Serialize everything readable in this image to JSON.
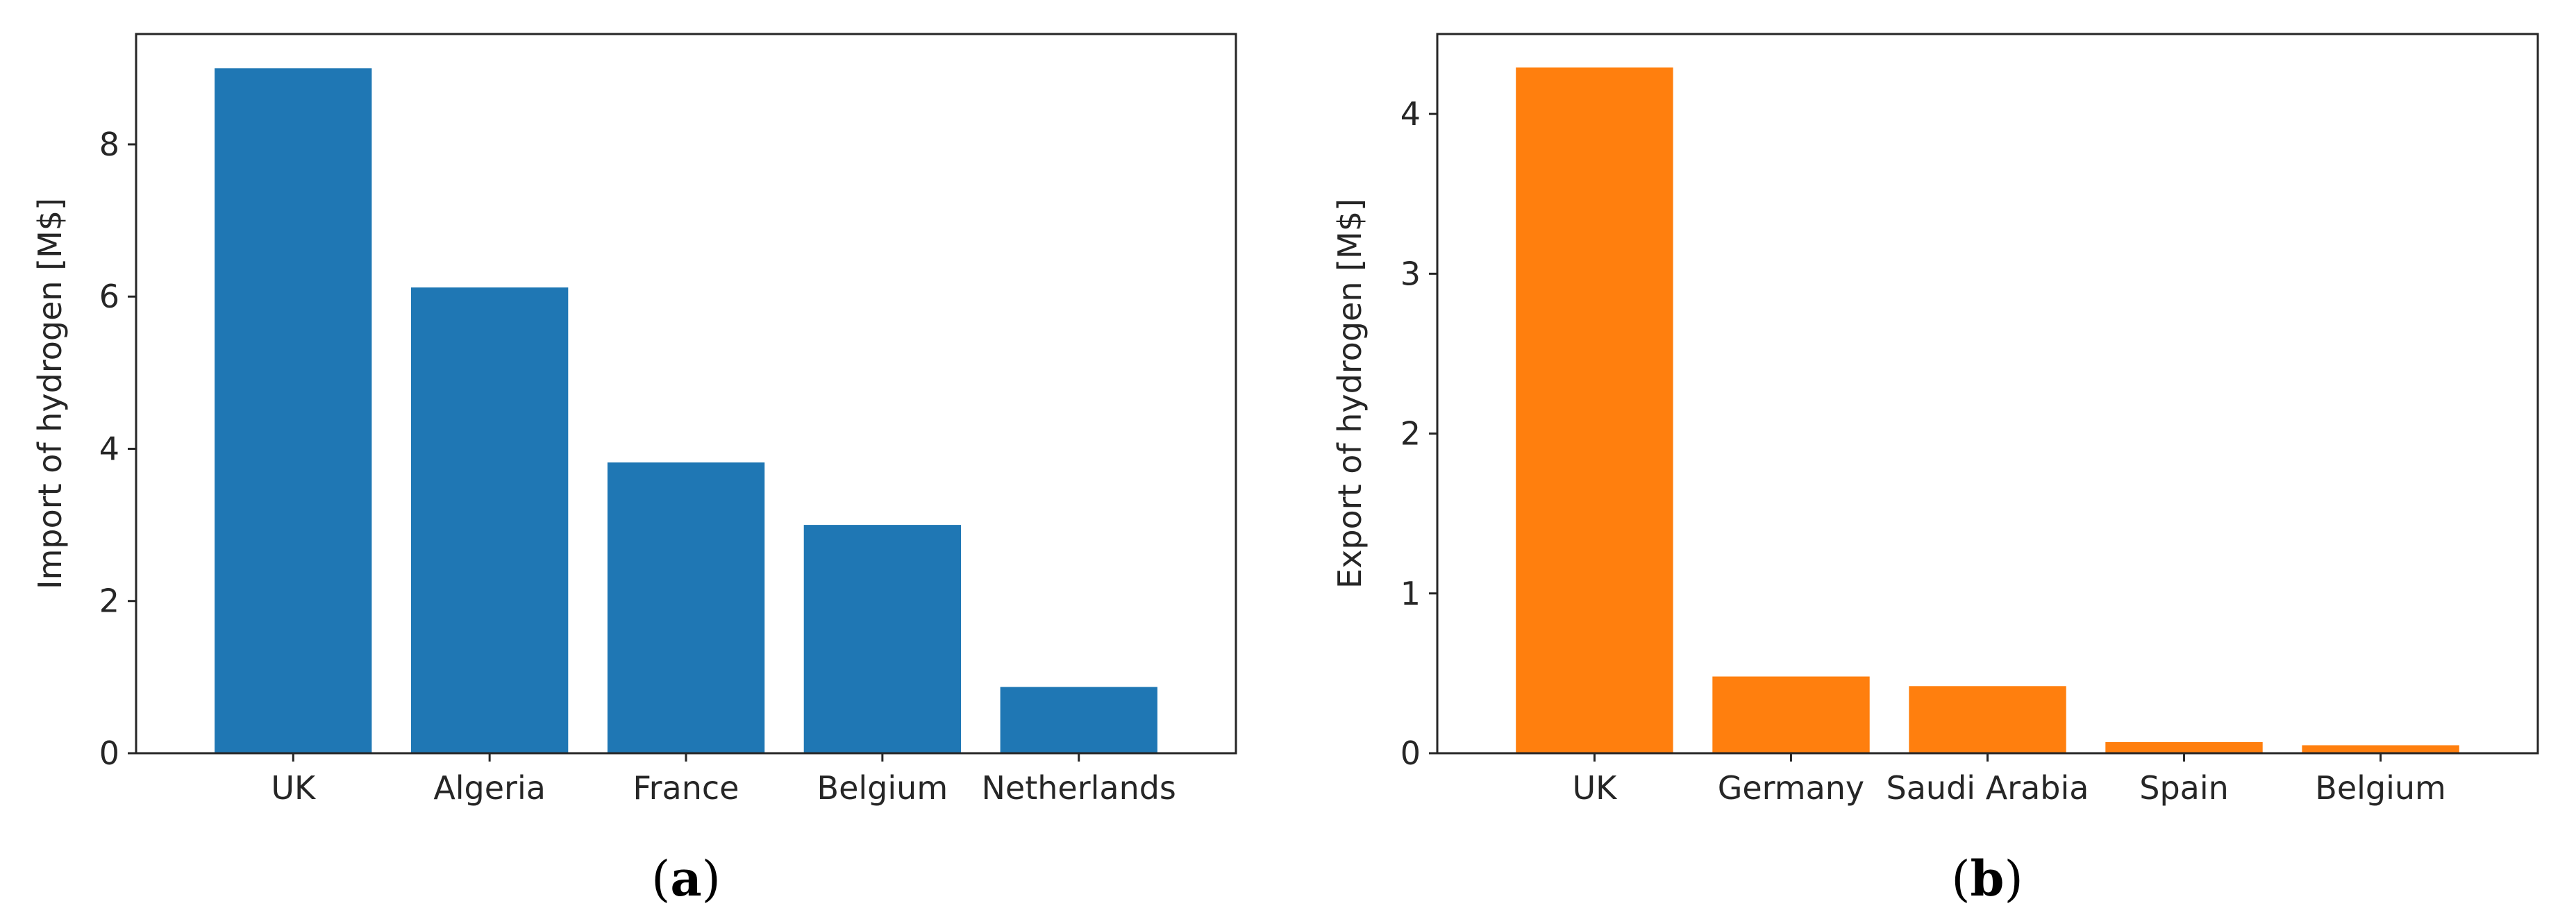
{
  "chart_data": [
    {
      "type": "bar",
      "panel_label": "(a)",
      "ylabel": "Import of hydrogen [M$]",
      "categories": [
        "UK",
        "Algeria",
        "France",
        "Belgium",
        "Netherlands"
      ],
      "values": [
        9.0,
        6.12,
        3.82,
        3.0,
        0.87
      ],
      "ylim": [
        0,
        9.45
      ],
      "yticks": [
        0,
        2,
        4,
        6,
        8
      ],
      "color": "#1f77b4",
      "grid": false,
      "legend": "none"
    },
    {
      "type": "bar",
      "panel_label": "(b)",
      "ylabel": "Export of hydrogen [M$]",
      "categories": [
        "UK",
        "Germany",
        "Saudi Arabia",
        "Spain",
        "Belgium"
      ],
      "values": [
        4.29,
        0.48,
        0.42,
        0.07,
        0.05
      ],
      "ylim": [
        0,
        4.5
      ],
      "yticks": [
        0,
        1,
        2,
        3,
        4
      ],
      "color": "#ff7f0e",
      "grid": false,
      "legend": "none"
    }
  ]
}
